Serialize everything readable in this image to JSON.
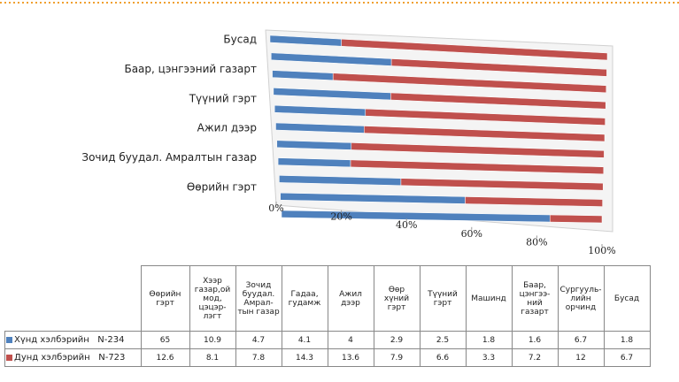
{
  "chart_data": {
    "type": "bar",
    "categories": [
      "Өөрийн гэрт",
      null,
      "Зочид буудал. Амралтын газар",
      null,
      "Ажил дээр",
      null,
      "Түүний гэрт",
      null,
      "Баар, цэнгээний газарт",
      null,
      "Бусад"
    ],
    "series": [
      {
        "name": "Хүнд хэлбэрийн   N-234",
        "color": "#4f81bd",
        "values": [
          65,
          10.9,
          4.7,
          4.1,
          4,
          2.9,
          2.5,
          1.8,
          1.6,
          6.7,
          1.8
        ]
      },
      {
        "name": "Дунд хэлбэрийн   N-723",
        "color": "#c0504d",
        "values": [
          12.6,
          8.1,
          7.8,
          14.3,
          13.6,
          7.9,
          6.6,
          3.3,
          7.2,
          12,
          6.7
        ]
      }
    ],
    "xlim": [
      0,
      100
    ],
    "xticks": [
      {
        "value": 0,
        "label": "0%"
      },
      {
        "value": 20,
        "label": "20%"
      },
      {
        "value": 40,
        "label": "40%"
      },
      {
        "value": 60,
        "label": "60%"
      },
      {
        "value": 80,
        "label": "80%"
      },
      {
        "value": 100,
        "label": "100%"
      }
    ],
    "stacked": "percent",
    "table_columns": [
      "Өөрийн гэрт",
      "Хээр газар,ой мод, цэцэр-лэгт",
      "Зочид буудал. Амрал-тын газар",
      "Гадаа, гудамж",
      "Ажил дээр",
      "Өөр хүний гэрт",
      "Түүний гэрт",
      "Машинд",
      "Баар, цэнгээ-ний газарт",
      "Сургууль-лийн орчинд",
      "Бусад"
    ]
  }
}
